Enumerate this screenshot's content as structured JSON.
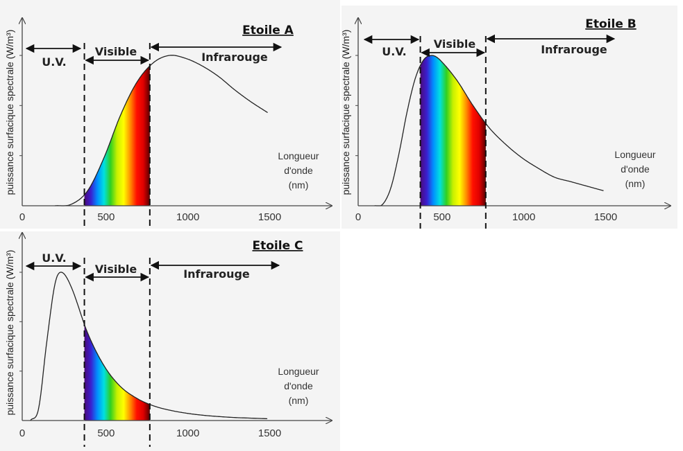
{
  "chart_data": [
    {
      "type": "line",
      "title": "Etoile A",
      "xlabel": "Longueur d'onde (nm)",
      "ylabel": "puissance surfacique spectrale (W/m³)",
      "xticks": [
        "0",
        "500",
        "1000",
        "1500"
      ],
      "xlim": [
        0,
        1900
      ],
      "regions": [
        {
          "label": "U.V.",
          "range": [
            0,
            380
          ]
        },
        {
          "label": "Visible",
          "range": [
            380,
            780
          ]
        },
        {
          "label": "Infrarouge",
          "range": [
            780,
            1600
          ]
        }
      ],
      "x": [
        200,
        300,
        400,
        500,
        600,
        700,
        800,
        900,
        1000,
        1100,
        1200,
        1300,
        1400,
        1500
      ],
      "y": [
        0,
        0.01,
        0.1,
        0.32,
        0.6,
        0.82,
        0.95,
        1.0,
        0.98,
        0.93,
        0.86,
        0.77,
        0.69,
        0.62
      ],
      "grid": false
    },
    {
      "type": "line",
      "title": "Etoile B",
      "xlabel": "Longueur d'onde (nm)",
      "ylabel": "puissance surfacique spectrale (W/m³)",
      "xticks": [
        "0",
        "500",
        "1000",
        "1500"
      ],
      "xlim": [
        0,
        1900
      ],
      "regions": [
        {
          "label": "U.V.",
          "range": [
            0,
            380
          ]
        },
        {
          "label": "Visible",
          "range": [
            380,
            780
          ]
        },
        {
          "label": "Infrarouge",
          "range": [
            780,
            1600
          ]
        }
      ],
      "x": [
        100,
        150,
        200,
        250,
        300,
        350,
        400,
        450,
        500,
        600,
        700,
        800,
        900,
        1000,
        1100,
        1200,
        1300,
        1400,
        1500
      ],
      "y": [
        0,
        0.01,
        0.12,
        0.35,
        0.63,
        0.85,
        0.97,
        1.0,
        0.97,
        0.84,
        0.67,
        0.52,
        0.41,
        0.32,
        0.25,
        0.19,
        0.16,
        0.13,
        0.1
      ],
      "grid": false
    },
    {
      "type": "line",
      "title": "Etoile C",
      "xlabel": "Longueur d'onde (nm)",
      "ylabel": "puissance surfacique spectrale (W/m³)",
      "xticks": [
        "0",
        "500",
        "1000",
        "1500"
      ],
      "xlim": [
        0,
        1900
      ],
      "regions": [
        {
          "label": "U.V.",
          "range": [
            0,
            380
          ]
        },
        {
          "label": "Visible",
          "range": [
            380,
            780
          ]
        },
        {
          "label": "Infrarouge",
          "range": [
            780,
            1600
          ]
        }
      ],
      "x": [
        50,
        100,
        150,
        200,
        240,
        300,
        400,
        500,
        600,
        700,
        800,
        900,
        1000,
        1100,
        1200,
        1300,
        1400,
        1500
      ],
      "y": [
        0,
        0.08,
        0.53,
        0.92,
        1.0,
        0.9,
        0.59,
        0.37,
        0.23,
        0.15,
        0.1,
        0.07,
        0.05,
        0.036,
        0.027,
        0.02,
        0.016,
        0.012
      ],
      "grid": false
    }
  ],
  "colors": {
    "background": "#f4f4f4",
    "curve": "#222222",
    "spectrum": [
      "#4b0a7a",
      "#3a1fd0",
      "#0090ff",
      "#00e0e0",
      "#30d020",
      "#c8f000",
      "#ffff00",
      "#ff9000",
      "#ff1000",
      "#e00000",
      "#5a0000"
    ]
  }
}
